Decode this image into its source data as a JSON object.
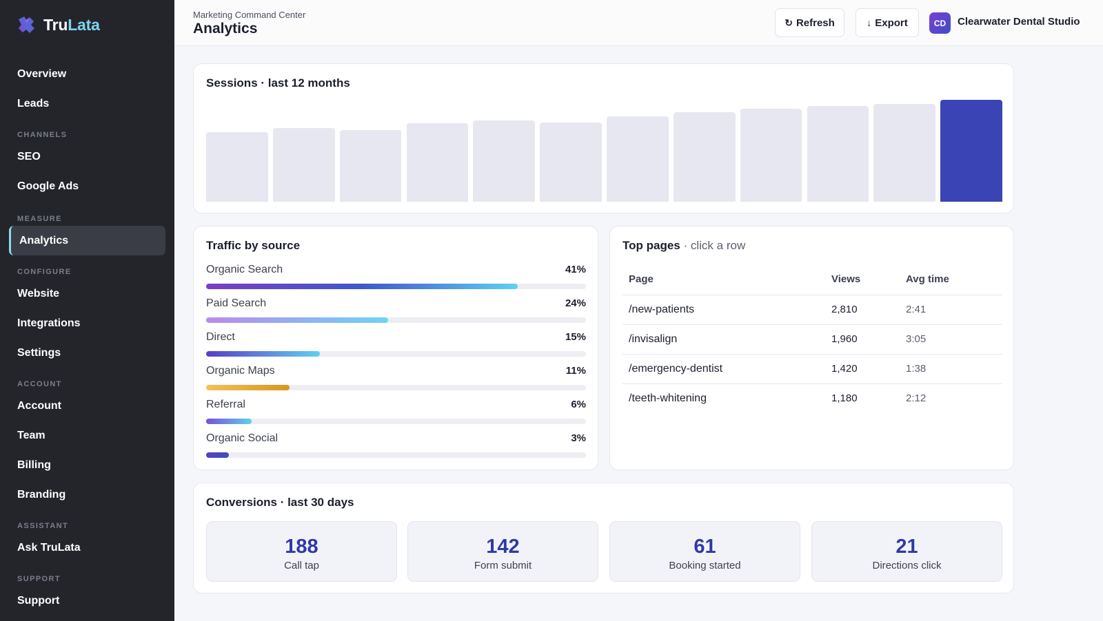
{
  "brand": {
    "name_part1": "Tru",
    "name_part2": "Lata",
    "logo_icon": "puzzle-logo-icon"
  },
  "sidebar": {
    "top_items": [
      "Overview",
      "Leads"
    ],
    "sections": [
      {
        "label": "CHANNELS",
        "items": [
          "SEO",
          "Google Ads"
        ]
      },
      {
        "label": "MEASURE",
        "items": [
          "Analytics"
        ]
      },
      {
        "label": "CONFIGURE",
        "items": [
          "Website",
          "Integrations",
          "Settings"
        ]
      },
      {
        "label": "ACCOUNT",
        "items": [
          "Account",
          "Team",
          "Billing",
          "Branding"
        ]
      },
      {
        "label": "ASSISTANT",
        "items": [
          "Ask TruLata"
        ]
      },
      {
        "label": "SUPPORT",
        "items": [
          "Support"
        ]
      }
    ],
    "active_item": "Analytics"
  },
  "header": {
    "eyebrow": "Marketing Command Center",
    "title": "Analytics",
    "refresh_label": "Refresh",
    "refresh_icon": "↻",
    "export_label": "Export",
    "export_icon": "↓",
    "avatar_initials": "CD",
    "org_name": "Clearwater Dental Studio"
  },
  "sessions": {
    "title": "Sessions · last 12 months",
    "chart_data": {
      "type": "bar",
      "values": [
        0.68,
        0.72,
        0.7,
        0.77,
        0.8,
        0.78,
        0.84,
        0.88,
        0.91,
        0.94,
        0.96,
        1.0
      ],
      "highlight_index": 11,
      "colors": {
        "bar": "#e6e7f0",
        "highlight": "#3a44b5"
      }
    }
  },
  "traffic": {
    "title": "Traffic by source",
    "sources": [
      {
        "label": "Organic Search",
        "pct": "41%",
        "fill": 0.82,
        "gradient": [
          "#7b3fc4",
          "#3f58c9",
          "#5fd0f0"
        ]
      },
      {
        "label": "Paid Search",
        "pct": "24%",
        "fill": 0.48,
        "gradient": [
          "#b98be8",
          "#6fd3f2"
        ]
      },
      {
        "label": "Direct",
        "pct": "15%",
        "fill": 0.3,
        "gradient": [
          "#5a3ec8",
          "#5fd0f0"
        ]
      },
      {
        "label": "Organic Maps",
        "pct": "11%",
        "fill": 0.22,
        "gradient": [
          "#f2c15a",
          "#d9951f"
        ]
      },
      {
        "label": "Referral",
        "pct": "6%",
        "fill": 0.12,
        "gradient": [
          "#7a4fd8",
          "#5fd0f0"
        ]
      },
      {
        "label": "Organic Social",
        "pct": "3%",
        "fill": 0.06,
        "gradient": [
          "#5a3ec8",
          "#3f4fb8"
        ]
      }
    ]
  },
  "pages": {
    "title": "Top pages",
    "subtitle": "· click a row",
    "columns": [
      "Page",
      "Views",
      "Avg time"
    ],
    "rows": [
      {
        "page": "/new-patients",
        "views": "2,810",
        "time": "2:41"
      },
      {
        "page": "/invisalign",
        "views": "1,960",
        "time": "3:05"
      },
      {
        "page": "/emergency-dentist",
        "views": "1,420",
        "time": "1:38"
      },
      {
        "page": "/teeth-whitening",
        "views": "1,180",
        "time": "2:12"
      }
    ]
  },
  "conversions": {
    "title": "Conversions · last 30 days",
    "tiles": [
      {
        "value": "188",
        "label": "Call tap"
      },
      {
        "value": "142",
        "label": "Form submit"
      },
      {
        "value": "61",
        "label": "Booking started"
      },
      {
        "value": "21",
        "label": "Directions click"
      }
    ]
  }
}
